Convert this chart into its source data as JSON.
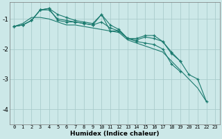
{
  "xlabel": "Humidex (Indice chaleur)",
  "bg_color": "#cce8e8",
  "line_color": "#1a7a6e",
  "grid_color": "#aacccc",
  "xlim": [
    -0.5,
    23.5
  ],
  "ylim": [
    -4.5,
    -0.45
  ],
  "yticks": [
    -4,
    -3,
    -2,
    -1
  ],
  "xticks": [
    0,
    1,
    2,
    3,
    4,
    5,
    6,
    7,
    8,
    9,
    10,
    11,
    12,
    13,
    14,
    15,
    16,
    17,
    18,
    19,
    20,
    21,
    22,
    23
  ],
  "series": [
    [
      -1.25,
      -1.2,
      -1.05,
      -0.7,
      -0.65,
      -1.05,
      -1.1,
      -1.1,
      -1.15,
      -1.2,
      -0.85,
      -1.4,
      -1.4,
      -1.65,
      -1.7,
      -1.6,
      -1.65,
      -1.75,
      -2.1,
      -2.4,
      -2.85,
      -3.0,
      -3.75,
      null
    ],
    [
      -1.25,
      -1.15,
      -0.95,
      -0.95,
      -1.0,
      -1.1,
      -1.2,
      -1.2,
      -1.25,
      -1.3,
      -1.35,
      -1.4,
      -1.45,
      -1.7,
      -1.8,
      -1.9,
      -2.0,
      -2.1,
      -2.4,
      -2.7,
      -3.0,
      -3.3,
      -3.75,
      null
    ],
    [
      -1.25,
      -1.2,
      -1.05,
      -0.7,
      -0.65,
      -0.85,
      -0.95,
      -1.05,
      -1.1,
      -1.15,
      -0.85,
      -1.2,
      -1.35,
      -1.65,
      -1.65,
      -1.55,
      -1.55,
      -1.75,
      -2.15,
      -2.4,
      null,
      null,
      null,
      null
    ],
    [
      -1.25,
      -1.2,
      -1.05,
      -0.7,
      -0.7,
      -1.0,
      -1.05,
      -1.1,
      -1.15,
      -1.2,
      -1.1,
      -1.3,
      -1.4,
      -1.65,
      -1.75,
      -1.8,
      -1.85,
      -2.0,
      -2.5,
      -2.75,
      null,
      null,
      null,
      null
    ]
  ],
  "has_markers": [
    true,
    false,
    true,
    true
  ],
  "figsize": [
    3.2,
    2.0
  ],
  "dpi": 100
}
